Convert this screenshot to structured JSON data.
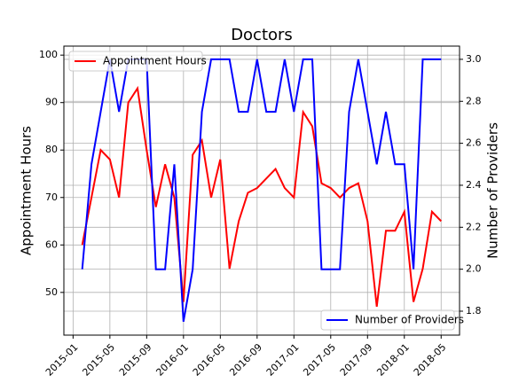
{
  "chart_data": {
    "type": "line",
    "title": "Doctors",
    "ylabel": "Appointment Hours",
    "y2label": "Number of Providers",
    "x": [
      "2015-02",
      "2015-03",
      "2015-04",
      "2015-05",
      "2015-06",
      "2015-07",
      "2015-08",
      "2015-09",
      "2015-10",
      "2015-11",
      "2015-12",
      "2016-01",
      "2016-02",
      "2016-03",
      "2016-04",
      "2016-05",
      "2016-06",
      "2016-07",
      "2016-08",
      "2016-09",
      "2016-10",
      "2016-11",
      "2016-12",
      "2017-01",
      "2017-02",
      "2017-03",
      "2017-04",
      "2017-05",
      "2017-06",
      "2017-07",
      "2017-08",
      "2017-09",
      "2017-10",
      "2017-11",
      "2017-12",
      "2018-01",
      "2018-02",
      "2018-03",
      "2018-04",
      "2018-05"
    ],
    "series": [
      {
        "name": "Appointment Hours",
        "color": "#ff0000",
        "axis": "y",
        "legend": "upper left",
        "values": [
          60,
          70,
          80,
          78,
          70,
          90,
          93,
          80,
          68,
          77,
          70,
          48,
          79,
          82,
          70,
          78,
          55,
          65,
          71,
          72,
          74,
          76,
          72,
          70,
          88,
          85,
          73,
          72,
          70,
          72,
          73,
          65,
          47,
          63,
          63,
          67,
          48,
          55,
          67,
          65
        ]
      },
      {
        "name": "Number of Providers",
        "color": "#0000ff",
        "axis": "y2",
        "legend": "lower right",
        "values": [
          2.0,
          2.5,
          2.75,
          3.0,
          2.75,
          3.0,
          3.0,
          3.0,
          2.0,
          2.0,
          2.5,
          1.75,
          2.0,
          2.75,
          3.0,
          3.0,
          3.0,
          2.75,
          2.75,
          3.0,
          2.75,
          2.75,
          3.0,
          2.75,
          3.0,
          3.0,
          2.0,
          2.0,
          2.0,
          2.75,
          3.0,
          2.75,
          2.5,
          2.75,
          2.5,
          2.5,
          2.0,
          3.0,
          3.0,
          3.0
        ]
      }
    ],
    "xlim": [
      "2014-12",
      "2018-07"
    ],
    "xticks": [
      "2015-01",
      "2015-05",
      "2015-09",
      "2016-01",
      "2016-05",
      "2016-09",
      "2017-01",
      "2017-05",
      "2017-09",
      "2018-01",
      "2018-05"
    ],
    "ylim": [
      41,
      101.9
    ],
    "yticks": [
      50,
      60,
      70,
      80,
      90,
      100
    ],
    "y2lim": [
      1.686,
      3.063
    ],
    "y2ticks": [
      1.8,
      {
        "value": 2,
        "label": "2.0"
      },
      2.2,
      2.4,
      2.6,
      2.8,
      {
        "value": 3,
        "label": "3.0"
      }
    ],
    "grid": true
  }
}
